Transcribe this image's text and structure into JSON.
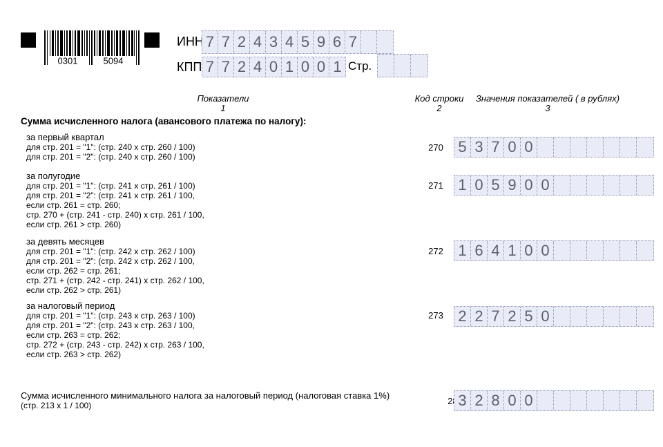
{
  "header": {
    "barcode": {
      "left_digits": "0301",
      "right_digits": "5094"
    },
    "inn": {
      "label": "ИНН",
      "value": "7724345967",
      "cells": 12
    },
    "kpp": {
      "label": "КПП",
      "value": "772401001",
      "cells": 9
    },
    "page_no": {
      "label": "Стр.",
      "value": "",
      "cells": 3
    }
  },
  "columns": {
    "indicators": {
      "label": "Показатели",
      "number": "1"
    },
    "line_code": {
      "label": "Код строки",
      "number": "2"
    },
    "values": {
      "label": "Значения показателей ( в рублях)",
      "number": "3"
    }
  },
  "section_title": "Сумма исчисленного налога (авансового платежа по налогу):",
  "rows": [
    {
      "title": "за первый квартал",
      "formulas": [
        "для стр. 201 = \"1\": (стр. 240 х стр. 260 / 100)",
        "для стр. 201 = \"2\": (стр. 240 х стр. 260 / 100)"
      ],
      "code": "270",
      "value": "53700",
      "cells": 12
    },
    {
      "title": "за полугодие",
      "formulas": [
        "для стр. 201 = \"1\": (стр. 241 х стр. 261 / 100)",
        "для стр. 201 = \"2\": (стр. 241 х стр. 261 / 100,",
        "если стр. 261 = стр. 260;",
        "стр. 270 + (стр. 241 - стр. 240) х стр. 261 / 100,",
        "если стр. 261 > стр. 260)"
      ],
      "code": "271",
      "value": "105900",
      "cells": 12
    },
    {
      "title": "за девять месяцев",
      "formulas": [
        "для стр. 201 = \"1\": (стр. 242 х стр. 262 / 100)",
        "для стр. 201 = \"2\": (стр. 242 х стр. 262 / 100,",
        "если стр. 262 = стр. 261;",
        "стр. 271 + (стр. 242 - стр. 241) х стр. 262 / 100,",
        "если стр. 262 > стр. 261)"
      ],
      "code": "272",
      "value": "164100",
      "cells": 12
    },
    {
      "title": "за налоговый период",
      "formulas": [
        "для стр. 201 = \"1\": (стр. 243 х стр. 263 / 100)",
        "для стр. 201 = \"2\": (стр. 243 х стр. 263 / 100,",
        "если стр. 263 = стр. 262;",
        "стр. 272 + (стр. 243 - стр. 242) х стр. 263 / 100,",
        "если стр. 263 > стр. 262)"
      ],
      "code": "273",
      "value": "227250",
      "cells": 12
    }
  ],
  "min_tax_row": {
    "title": "Сумма исчисленного минимального налога за налоговый период (налоговая ставка 1%)",
    "formula": "(стр. 213 х 1 / 100)",
    "code": "280",
    "value": "32800",
    "cells": 12
  },
  "colors": {
    "field_bg": "#e9ebf7",
    "field_dots": "#8f94b5",
    "field_digits": "#5c606e"
  }
}
